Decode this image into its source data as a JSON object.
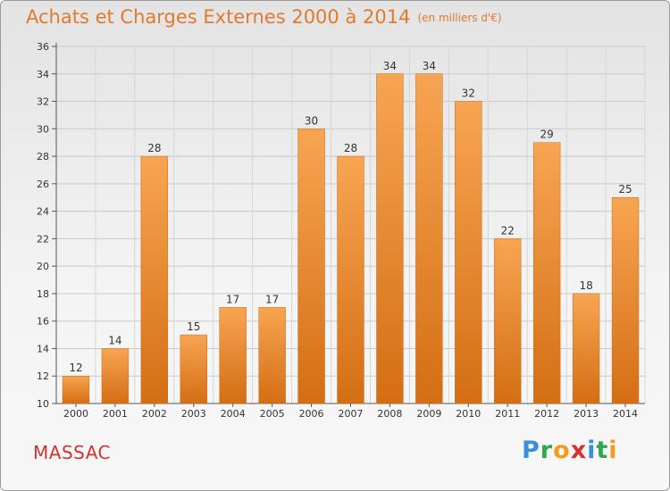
{
  "title": "Achats et Charges Externes 2000 à 2014",
  "subtitle": "(en milliers d'€)",
  "commune": "MASSAC",
  "logo": {
    "letters": [
      "P",
      "r",
      "o",
      "x",
      "i",
      "t",
      "i"
    ],
    "colors": [
      "#3a8fd6",
      "#2fa84f",
      "#f29c1c",
      "#d0342c",
      "#3a8fd6",
      "#2fa84f",
      "#f29c1c"
    ]
  },
  "chart_data": {
    "type": "bar",
    "title": "Achats et Charges Externes 2000 à 2014",
    "xlabel": "",
    "ylabel": "",
    "categories": [
      "2000",
      "2001",
      "2002",
      "2003",
      "2004",
      "2005",
      "2006",
      "2007",
      "2008",
      "2009",
      "2010",
      "2011",
      "2012",
      "2013",
      "2014"
    ],
    "values": [
      12,
      14,
      28,
      15,
      17,
      17,
      30,
      28,
      34,
      34,
      32,
      22,
      29,
      18,
      25
    ],
    "ylim": [
      10,
      36
    ],
    "yticks": [
      10,
      12,
      14,
      16,
      18,
      20,
      22,
      24,
      26,
      28,
      30,
      32,
      34,
      36
    ],
    "grid": true,
    "legend": "none",
    "bar_color": "#f28c28"
  }
}
